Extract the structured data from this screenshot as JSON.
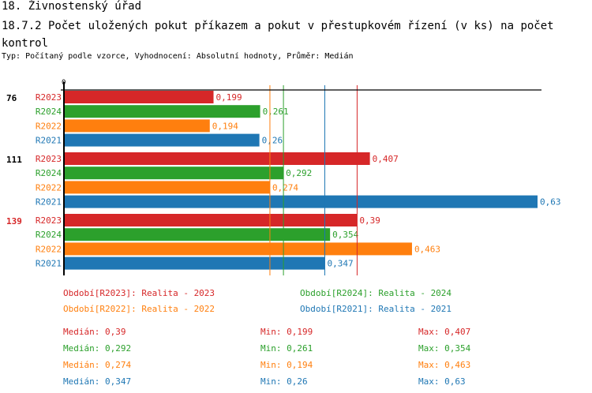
{
  "header": {
    "title": "18. Živnostenský úřad",
    "subtitle": "18.7.2 Počet uložených pokut příkazem a pokut v přestupkovém řízení (v ks) na počet kontrol",
    "info": "Typ: Počítaný podle vzorce, Vyhodnocení: Absolutní hodnoty, Průměr: Medián"
  },
  "chart_data": {
    "type": "bar",
    "orientation": "horizontal",
    "xlim": [
      0,
      0.63
    ],
    "x_tick_labels": [
      "0"
    ],
    "categories": [
      "76",
      "111",
      "139"
    ],
    "category_colors": [
      "#000000",
      "#000000",
      "#d62728"
    ],
    "series": [
      {
        "name": "R2023",
        "color": "#d62728",
        "values": [
          0.199,
          0.407,
          0.39
        ],
        "labels": [
          "0,199",
          "0,407",
          "0,39"
        ]
      },
      {
        "name": "R2024",
        "color": "#2ca02c",
        "values": [
          0.261,
          0.292,
          0.354
        ],
        "labels": [
          "0,261",
          "0,292",
          "0,354"
        ]
      },
      {
        "name": "R2022",
        "color": "#ff7f0e",
        "values": [
          0.194,
          0.274,
          0.463
        ],
        "labels": [
          "0,194",
          "0,274",
          "0,463"
        ]
      },
      {
        "name": "R2021",
        "color": "#1f77b4",
        "values": [
          0.26,
          0.63,
          0.347
        ],
        "labels": [
          "0,26",
          "0,63",
          "0,347"
        ]
      }
    ],
    "median_lines": [
      {
        "series": "R2023",
        "value": 0.39
      },
      {
        "series": "R2024",
        "value": 0.292
      },
      {
        "series": "R2022",
        "value": 0.274
      },
      {
        "series": "R2021",
        "value": 0.347
      }
    ],
    "legend": [
      "Období[R2023]: Realita - 2023",
      "Období[R2024]: Realita - 2024",
      "Období[R2022]: Realita - 2022",
      "Období[R2021]: Realita - 2021"
    ],
    "stats": [
      [
        "Medián: 0,39",
        "Min: 0,199",
        "Max: 0,407"
      ],
      [
        "Medián: 0,292",
        "Min: 0,261",
        "Max: 0,354"
      ],
      [
        "Medián: 0,274",
        "Min: 0,194",
        "Max: 0,463"
      ],
      [
        "Medián: 0,347",
        "Min: 0,26",
        "Max: 0,63"
      ]
    ]
  }
}
